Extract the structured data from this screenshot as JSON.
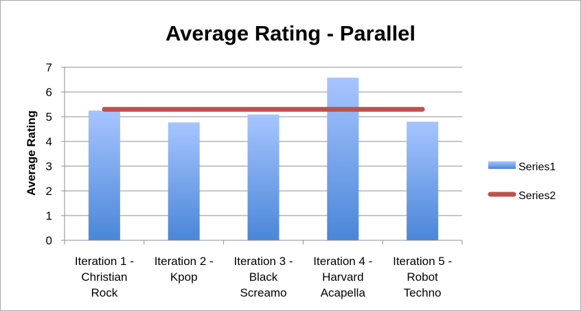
{
  "chart_data": {
    "type": "bar",
    "title": "Average Rating - Parallel",
    "xlabel": "",
    "ylabel": "Average Rating",
    "ylim": [
      0,
      7
    ],
    "yticks": [
      "0",
      "1",
      "2",
      "3",
      "4",
      "5",
      "6",
      "7"
    ],
    "grid": "horizontal",
    "legend_position": "right",
    "categories": [
      [
        "Iteration 1 -",
        "Christian",
        "Rock"
      ],
      [
        "Iteration 2 -",
        "Kpop"
      ],
      [
        "Iteration 3 -",
        "Black",
        "Screamo"
      ],
      [
        "Iteration 4 -",
        "Harvard",
        "Acapella"
      ],
      [
        "Iteration 5 -",
        "Robot",
        "Techno"
      ]
    ],
    "series": [
      {
        "name": "Series1",
        "type": "bar",
        "color_top": "#a7c5ff",
        "color_bottom": "#4a86d8",
        "values": [
          5.25,
          4.77,
          5.09,
          6.58,
          4.8
        ]
      },
      {
        "name": "Series2",
        "type": "line",
        "color": "#c0504d",
        "values": [
          5.3,
          5.3,
          5.3,
          5.3,
          5.3
        ]
      }
    ]
  }
}
